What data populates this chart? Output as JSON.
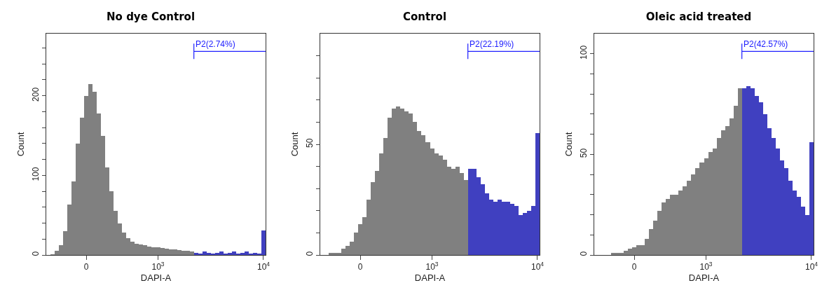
{
  "chart_data": [
    {
      "type": "bar",
      "title": "No dye Control",
      "xlabel": "DAPI-A",
      "ylabel": "Count",
      "categories": [
        null,
        null,
        null,
        null,
        null,
        null,
        null,
        null,
        null,
        "0",
        null,
        null,
        null,
        null,
        null,
        null,
        null,
        null,
        null,
        null,
        null,
        null,
        null,
        null,
        null,
        null,
        "10$^{3}$",
        null,
        null,
        null,
        null,
        null,
        null,
        null,
        null,
        null,
        null,
        null,
        null,
        null,
        null,
        null,
        null,
        null,
        null,
        null,
        null,
        null,
        null,
        null,
        null,
        "10$^{4}$"
      ],
      "series": [
        {
          "color": "#808080",
          "values": [
            0,
            1,
            5,
            12,
            30,
            63,
            92,
            140,
            172,
            200,
            215,
            205,
            178,
            150,
            110,
            80,
            55,
            40,
            28,
            21,
            17,
            14,
            13,
            12,
            11,
            10,
            10,
            9,
            8,
            7,
            7,
            6,
            5,
            5,
            4,
            null,
            null,
            null,
            null,
            null,
            null,
            null,
            null,
            null,
            null,
            null,
            null,
            null,
            null,
            null,
            null,
            null
          ]
        },
        {
          "color": "#4040c0",
          "values": [
            null,
            null,
            null,
            null,
            null,
            null,
            null,
            null,
            null,
            null,
            null,
            null,
            null,
            null,
            null,
            null,
            null,
            null,
            null,
            null,
            null,
            null,
            null,
            null,
            null,
            null,
            null,
            null,
            null,
            null,
            null,
            null,
            null,
            null,
            null,
            3,
            2,
            4,
            3,
            2,
            3,
            4,
            2,
            3,
            4,
            2,
            3,
            4,
            2,
            3,
            2,
            31
          ]
        }
      ],
      "ylim": [
        0,
        278
      ],
      "yticks": [
        0,
        {
          "value": 20,
          "label": null
        },
        {
          "value": 40,
          "label": null
        },
        {
          "value": 60,
          "label": null
        },
        {
          "value": 80,
          "label": null
        },
        100,
        {
          "value": 120,
          "label": null
        },
        {
          "value": 140,
          "label": null
        },
        {
          "value": 160,
          "label": null
        },
        {
          "value": 180,
          "label": null
        },
        200,
        {
          "value": 220,
          "label": null
        },
        {
          "value": 240,
          "label": null
        },
        {
          "value": 260,
          "label": null
        }
      ],
      "annotations": [
        "P2(2.74%)"
      ],
      "grid": false
    },
    {
      "type": "bar",
      "title": "Control",
      "xlabel": "DAPI-A",
      "ylabel": "Count",
      "categories": [
        null,
        null,
        null,
        null,
        null,
        null,
        null,
        null,
        null,
        "0",
        null,
        null,
        null,
        null,
        null,
        null,
        null,
        null,
        null,
        null,
        null,
        null,
        null,
        null,
        null,
        null,
        "10$^{3}$",
        null,
        null,
        null,
        null,
        null,
        null,
        null,
        null,
        null,
        null,
        null,
        null,
        null,
        null,
        null,
        null,
        null,
        null,
        null,
        null,
        null,
        null,
        null,
        null,
        "10$^{4}$"
      ],
      "series": [
        {
          "color": "#808080",
          "values": [
            0,
            0,
            1,
            1,
            1,
            3,
            4,
            6,
            10,
            14,
            17,
            25,
            33,
            38,
            46,
            53,
            62,
            66,
            67,
            66,
            65,
            64,
            60,
            56,
            54,
            51,
            48,
            46,
            45,
            43,
            40,
            39,
            40,
            37,
            34,
            null,
            null,
            null,
            null,
            null,
            null,
            null,
            null,
            null,
            null,
            null,
            null,
            null,
            null,
            null,
            null,
            null
          ]
        },
        {
          "color": "#4040c0",
          "values": [
            null,
            null,
            null,
            null,
            null,
            null,
            null,
            null,
            null,
            null,
            null,
            null,
            null,
            null,
            null,
            null,
            null,
            null,
            null,
            null,
            null,
            null,
            null,
            null,
            null,
            null,
            null,
            null,
            null,
            null,
            null,
            null,
            null,
            null,
            null,
            39,
            39,
            35,
            32,
            28,
            25,
            24,
            25,
            24,
            24,
            23,
            22,
            18,
            19,
            20,
            22,
            55
          ]
        }
      ],
      "ylim": [
        0,
        100
      ],
      "yticks": [
        0,
        {
          "value": 10,
          "label": null
        },
        {
          "value": 20,
          "label": null
        },
        {
          "value": 30,
          "label": null
        },
        {
          "value": 40,
          "label": null
        },
        50,
        {
          "value": 60,
          "label": null
        },
        {
          "value": 70,
          "label": null
        },
        {
          "value": 80,
          "label": null
        },
        {
          "value": 90,
          "label": null
        }
      ],
      "annotations": [
        "P2(22.19%)"
      ],
      "grid": false
    },
    {
      "type": "bar",
      "title": "Oleic acid treated",
      "xlabel": "DAPI-A",
      "ylabel": "Count",
      "categories": [
        null,
        null,
        null,
        null,
        null,
        null,
        null,
        null,
        null,
        "0",
        null,
        null,
        null,
        null,
        null,
        null,
        null,
        null,
        null,
        null,
        null,
        null,
        null,
        null,
        null,
        null,
        "10$^{3}$",
        null,
        null,
        null,
        null,
        null,
        null,
        null,
        null,
        null,
        null,
        null,
        null,
        null,
        null,
        null,
        null,
        null,
        null,
        null,
        null,
        null,
        null,
        null,
        null,
        "10$^{4}$"
      ],
      "series": [
        {
          "color": "#808080",
          "values": [
            0,
            0,
            0,
            0,
            1,
            1,
            1,
            2,
            3,
            4,
            5,
            5,
            8,
            13,
            17,
            22,
            26,
            28,
            30,
            30,
            32,
            34,
            37,
            40,
            43,
            46,
            48,
            51,
            53,
            58,
            62,
            64,
            68,
            74,
            83,
            null,
            null,
            null,
            null,
            null,
            null,
            null,
            null,
            null,
            null,
            null,
            null,
            null,
            null,
            null,
            null,
            null
          ]
        },
        {
          "color": "#4040c0",
          "values": [
            null,
            null,
            null,
            null,
            null,
            null,
            null,
            null,
            null,
            null,
            null,
            null,
            null,
            null,
            null,
            null,
            null,
            null,
            null,
            null,
            null,
            null,
            null,
            null,
            null,
            null,
            null,
            null,
            null,
            null,
            null,
            null,
            null,
            null,
            null,
            83,
            84,
            83,
            79,
            76,
            70,
            63,
            58,
            53,
            47,
            43,
            37,
            32,
            29,
            24,
            20,
            56
          ]
        }
      ],
      "ylim": [
        0,
        110
      ],
      "yticks": [
        0,
        {
          "value": 10,
          "label": null
        },
        {
          "value": 20,
          "label": null
        },
        {
          "value": 30,
          "label": null
        },
        {
          "value": 40,
          "label": null
        },
        50,
        {
          "value": 60,
          "label": null
        },
        {
          "value": 70,
          "label": null
        },
        {
          "value": 80,
          "label": null
        },
        {
          "value": 90,
          "label": null
        },
        100
      ],
      "annotations": [
        "P2(42.57%)"
      ],
      "grid": false
    }
  ]
}
